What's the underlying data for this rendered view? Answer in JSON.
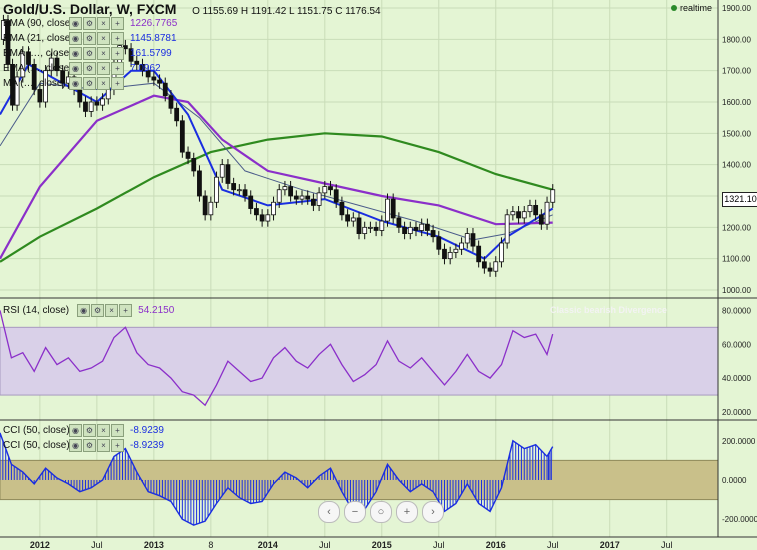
{
  "header": {
    "symbol": "Gold/U.S. Dollar, W, FXCM",
    "open": "O 1155.69",
    "high": "H 1191.42",
    "low": "L 1151.75",
    "close": "C 1176.54",
    "realtime": "realtime"
  },
  "legend": [
    {
      "name": "EMA (90, close)",
      "value": "1226.7765",
      "color": "#8b2fc9"
    },
    {
      "name": "EMA (21, close)",
      "value": "1145.8781",
      "color": "#1a2ee0"
    },
    {
      "name": "EMA (…, close)",
      "value": "161.5799",
      "color": "#1a2ee0"
    },
    {
      "name": "EMA (…, close)",
      "value": "7.0962",
      "color": "#1a2ee0"
    },
    {
      "name": "MA (…, close)",
      "value": "",
      "color": "#1a2ee0"
    }
  ],
  "rsi_panel": {
    "label": "RSI (14, close)",
    "value": "54.2150",
    "annotation": "Classic bearish Divergence"
  },
  "cci_panel": {
    "label1": "CCI (50, close)",
    "value1": "-8.9239",
    "label2": "CCI (50, close)",
    "value2": "-8.9239"
  },
  "last_price": "1321.10",
  "nav_buttons": [
    "‹",
    "−",
    "○",
    "+",
    "›"
  ],
  "chart_data": [
    {
      "type": "candlestick",
      "title": "Gold/U.S. Dollar, W, FXCM",
      "y_ticks": [
        "1900.00",
        "1800.00",
        "1700.00",
        "1600.00",
        "1500.00",
        "1400.00",
        "1300.00",
        "1200.00",
        "1100.00",
        "1000.00"
      ],
      "ylim": [
        1000,
        1900
      ],
      "x_ticks": [
        "2012",
        "Jul",
        "2013",
        "8",
        "2014",
        "Jul",
        "2015",
        "Jul",
        "2016",
        "Jul",
        "2017",
        "Jul"
      ],
      "x_tick_positions": [
        2012.0,
        2012.5,
        2013.0,
        2013.5,
        2014.0,
        2014.5,
        2015.0,
        2015.5,
        2016.0,
        2016.5,
        2017.0,
        2017.5
      ],
      "xlim": [
        2011.65,
        2017.95
      ],
      "close_path": [
        [
          2011.65,
          1800
        ],
        [
          2011.68,
          1860
        ],
        [
          2011.72,
          1720
        ],
        [
          2011.76,
          1590
        ],
        [
          2011.8,
          1680
        ],
        [
          2011.85,
          1760
        ],
        [
          2011.9,
          1720
        ],
        [
          2011.95,
          1640
        ],
        [
          2012.0,
          1600
        ],
        [
          2012.05,
          1700
        ],
        [
          2012.1,
          1740
        ],
        [
          2012.15,
          1700
        ],
        [
          2012.2,
          1660
        ],
        [
          2012.25,
          1680
        ],
        [
          2012.3,
          1640
        ],
        [
          2012.35,
          1600
        ],
        [
          2012.4,
          1570
        ],
        [
          2012.45,
          1600
        ],
        [
          2012.5,
          1590
        ],
        [
          2012.55,
          1610
        ],
        [
          2012.6,
          1640
        ],
        [
          2012.65,
          1720
        ],
        [
          2012.7,
          1780
        ],
        [
          2012.75,
          1770
        ],
        [
          2012.8,
          1730
        ],
        [
          2012.85,
          1720
        ],
        [
          2012.9,
          1700
        ],
        [
          2012.95,
          1680
        ],
        [
          2013.0,
          1670
        ],
        [
          2013.05,
          1660
        ],
        [
          2013.1,
          1620
        ],
        [
          2013.15,
          1580
        ],
        [
          2013.2,
          1540
        ],
        [
          2013.25,
          1440
        ],
        [
          2013.3,
          1420
        ],
        [
          2013.35,
          1380
        ],
        [
          2013.4,
          1300
        ],
        [
          2013.45,
          1240
        ],
        [
          2013.5,
          1280
        ],
        [
          2013.55,
          1360
        ],
        [
          2013.6,
          1400
        ],
        [
          2013.65,
          1340
        ],
        [
          2013.7,
          1320
        ],
        [
          2013.75,
          1320
        ],
        [
          2013.8,
          1300
        ],
        [
          2013.85,
          1260
        ],
        [
          2013.9,
          1240
        ],
        [
          2013.95,
          1220
        ],
        [
          2014.0,
          1240
        ],
        [
          2014.05,
          1280
        ],
        [
          2014.1,
          1320
        ],
        [
          2014.15,
          1330
        ],
        [
          2014.2,
          1300
        ],
        [
          2014.25,
          1290
        ],
        [
          2014.3,
          1300
        ],
        [
          2014.35,
          1290
        ],
        [
          2014.4,
          1270
        ],
        [
          2014.45,
          1310
        ],
        [
          2014.5,
          1330
        ],
        [
          2014.55,
          1320
        ],
        [
          2014.6,
          1280
        ],
        [
          2014.65,
          1240
        ],
        [
          2014.7,
          1220
        ],
        [
          2014.75,
          1230
        ],
        [
          2014.8,
          1180
        ],
        [
          2014.85,
          1200
        ],
        [
          2014.9,
          1200
        ],
        [
          2014.95,
          1190
        ],
        [
          2015.0,
          1220
        ],
        [
          2015.05,
          1290
        ],
        [
          2015.1,
          1230
        ],
        [
          2015.15,
          1200
        ],
        [
          2015.2,
          1180
        ],
        [
          2015.25,
          1200
        ],
        [
          2015.3,
          1190
        ],
        [
          2015.35,
          1210
        ],
        [
          2015.4,
          1190
        ],
        [
          2015.45,
          1170
        ],
        [
          2015.5,
          1130
        ],
        [
          2015.55,
          1100
        ],
        [
          2015.6,
          1120
        ],
        [
          2015.65,
          1130
        ],
        [
          2015.7,
          1150
        ],
        [
          2015.75,
          1180
        ],
        [
          2015.8,
          1140
        ],
        [
          2015.85,
          1090
        ],
        [
          2015.9,
          1070
        ],
        [
          2015.95,
          1060
        ],
        [
          2016.0,
          1090
        ],
        [
          2016.05,
          1150
        ],
        [
          2016.1,
          1240
        ],
        [
          2016.15,
          1250
        ],
        [
          2016.2,
          1230
        ],
        [
          2016.25,
          1250
        ],
        [
          2016.3,
          1270
        ],
        [
          2016.35,
          1240
        ],
        [
          2016.4,
          1210
        ],
        [
          2016.45,
          1280
        ],
        [
          2016.5,
          1320
        ]
      ],
      "ema_90_path": [
        [
          2011.65,
          1100
        ],
        [
          2012.0,
          1330
        ],
        [
          2012.5,
          1540
        ],
        [
          2013.0,
          1620
        ],
        [
          2013.3,
          1600
        ],
        [
          2013.6,
          1480
        ],
        [
          2014.0,
          1380
        ],
        [
          2014.5,
          1340
        ],
        [
          2015.0,
          1300
        ],
        [
          2015.5,
          1270
        ],
        [
          2016.0,
          1210
        ],
        [
          2016.5,
          1215
        ]
      ],
      "ema_21_path": [
        [
          2011.65,
          1560
        ],
        [
          2011.9,
          1720
        ],
        [
          2012.2,
          1660
        ],
        [
          2012.5,
          1600
        ],
        [
          2012.8,
          1700
        ],
        [
          2013.0,
          1700
        ],
        [
          2013.3,
          1560
        ],
        [
          2013.6,
          1320
        ],
        [
          2014.0,
          1270
        ],
        [
          2014.5,
          1290
        ],
        [
          2015.0,
          1220
        ],
        [
          2015.5,
          1170
        ],
        [
          2015.9,
          1100
        ],
        [
          2016.1,
          1170
        ],
        [
          2016.5,
          1260
        ]
      ],
      "ema_thin_path": [
        [
          2011.65,
          1460
        ],
        [
          2012.0,
          1660
        ],
        [
          2012.5,
          1640
        ],
        [
          2013.0,
          1660
        ],
        [
          2013.4,
          1550
        ],
        [
          2013.8,
          1380
        ],
        [
          2014.3,
          1320
        ],
        [
          2014.8,
          1270
        ],
        [
          2015.3,
          1220
        ],
        [
          2015.8,
          1160
        ],
        [
          2016.1,
          1180
        ],
        [
          2016.5,
          1240
        ]
      ],
      "ma_green_path": [
        [
          2011.65,
          1090
        ],
        [
          2012.0,
          1170
        ],
        [
          2012.5,
          1260
        ],
        [
          2013.0,
          1360
        ],
        [
          2013.5,
          1440
        ],
        [
          2014.0,
          1480
        ],
        [
          2014.5,
          1500
        ],
        [
          2015.0,
          1490
        ],
        [
          2015.5,
          1440
        ],
        [
          2016.0,
          1370
        ],
        [
          2016.5,
          1320
        ]
      ]
    },
    {
      "type": "line",
      "title": "RSI (14, close)",
      "y_ticks": [
        "80.0000",
        "60.0000",
        "40.0000",
        "20.0000"
      ],
      "ylim": [
        20,
        82
      ],
      "band": [
        30,
        70
      ],
      "x": [
        2011.65,
        2011.75,
        2011.85,
        2011.95,
        2012.05,
        2012.15,
        2012.25,
        2012.35,
        2012.45,
        2012.55,
        2012.65,
        2012.75,
        2012.85,
        2012.95,
        2013.05,
        2013.15,
        2013.25,
        2013.35,
        2013.45,
        2013.55,
        2013.65,
        2013.75,
        2013.85,
        2013.95,
        2014.05,
        2014.15,
        2014.25,
        2014.35,
        2014.45,
        2014.55,
        2014.65,
        2014.75,
        2014.85,
        2014.95,
        2015.05,
        2015.15,
        2015.25,
        2015.35,
        2015.45,
        2015.55,
        2015.65,
        2015.75,
        2015.85,
        2015.95,
        2016.05,
        2016.15,
        2016.25,
        2016.35,
        2016.45,
        2016.5
      ],
      "values": [
        80,
        52,
        55,
        44,
        58,
        48,
        52,
        44,
        46,
        50,
        64,
        70,
        55,
        48,
        46,
        40,
        32,
        30,
        24,
        36,
        50,
        44,
        38,
        40,
        52,
        58,
        50,
        46,
        54,
        60,
        48,
        38,
        42,
        48,
        62,
        50,
        46,
        52,
        44,
        36,
        44,
        54,
        44,
        40,
        48,
        68,
        64,
        66,
        54,
        66
      ]
    },
    {
      "type": "bar",
      "title": "CCI (50, close)",
      "y_ticks": [
        "200.0000",
        "0.0000",
        "-200.0000"
      ],
      "ylim": [
        -250,
        260
      ],
      "band": [
        -100,
        100
      ],
      "x": [
        2011.65,
        2011.75,
        2011.85,
        2011.95,
        2012.05,
        2012.15,
        2012.25,
        2012.35,
        2012.45,
        2012.55,
        2012.65,
        2012.75,
        2012.85,
        2012.95,
        2013.05,
        2013.15,
        2013.25,
        2013.35,
        2013.45,
        2013.55,
        2013.65,
        2013.75,
        2013.85,
        2013.95,
        2014.05,
        2014.15,
        2014.25,
        2014.35,
        2014.45,
        2014.55,
        2014.65,
        2014.75,
        2014.85,
        2014.95,
        2015.05,
        2015.15,
        2015.25,
        2015.35,
        2015.45,
        2015.55,
        2015.65,
        2015.75,
        2015.85,
        2015.95,
        2016.05,
        2016.15,
        2016.25,
        2016.35,
        2016.45,
        2016.5
      ],
      "values": [
        240,
        80,
        40,
        -20,
        60,
        10,
        -20,
        -60,
        -40,
        0,
        120,
        160,
        40,
        -60,
        -80,
        -110,
        -200,
        -230,
        -210,
        -120,
        -40,
        -90,
        -120,
        -110,
        -20,
        40,
        10,
        -40,
        20,
        60,
        -60,
        -160,
        -150,
        -60,
        80,
        0,
        -60,
        -20,
        -60,
        -160,
        -120,
        -20,
        -120,
        -160,
        -40,
        200,
        160,
        180,
        120,
        170
      ]
    }
  ]
}
